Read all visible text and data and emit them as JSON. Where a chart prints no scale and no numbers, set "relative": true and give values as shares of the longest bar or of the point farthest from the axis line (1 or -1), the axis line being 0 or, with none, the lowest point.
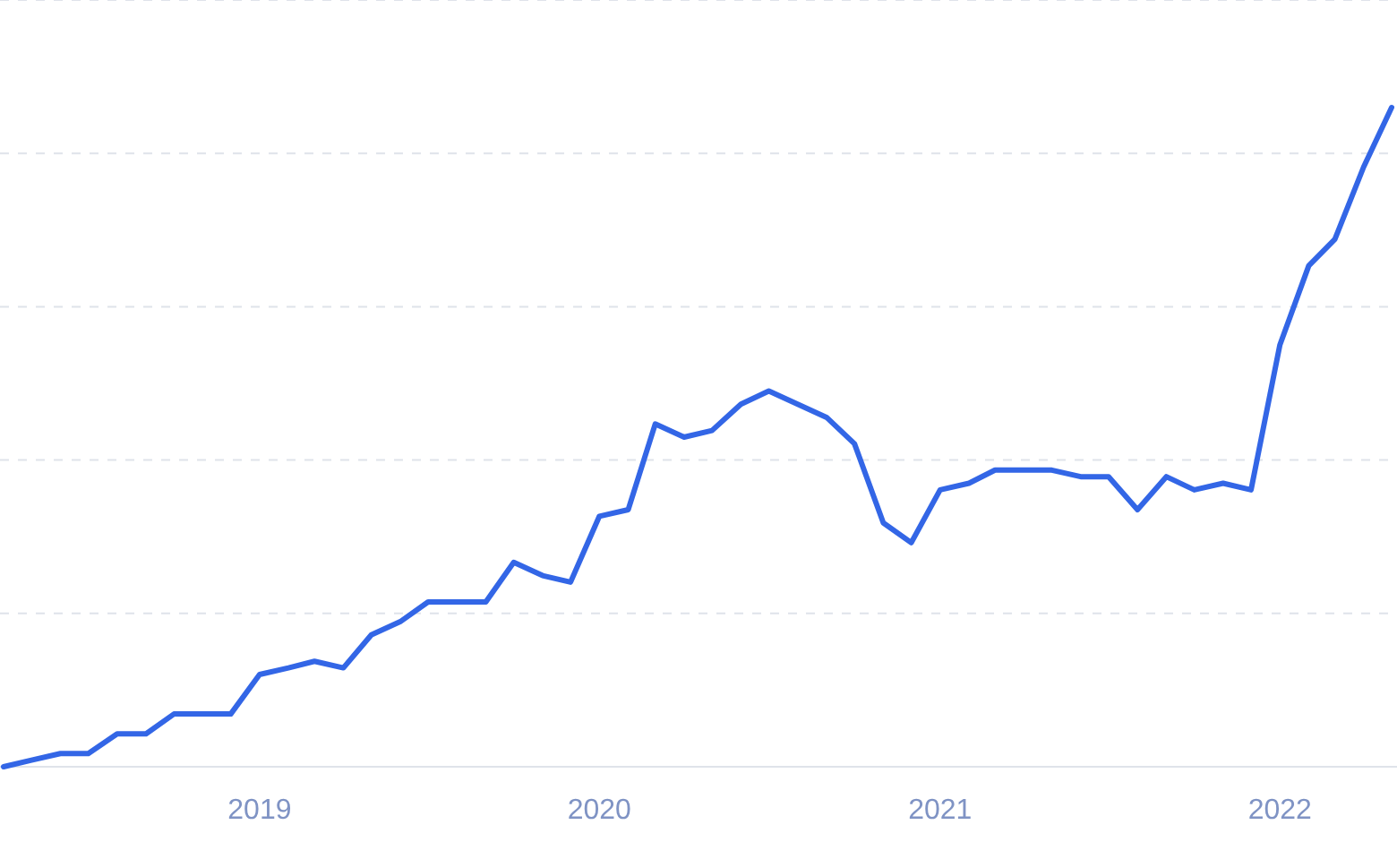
{
  "chart_data": {
    "type": "line",
    "relative": true,
    "grid": "y",
    "xlim": [
      "2018-04",
      "2022-05"
    ],
    "xticks": [
      "2019",
      "2020",
      "2021",
      "2022"
    ],
    "x": [
      "2018-04",
      "2018-05",
      "2018-06",
      "2018-07",
      "2018-08",
      "2018-09",
      "2018-10",
      "2018-11",
      "2018-12",
      "2019-01",
      "2019-02",
      "2019-03",
      "2019-04",
      "2019-05",
      "2019-06",
      "2019-07",
      "2019-08",
      "2019-09",
      "2019-10",
      "2019-11",
      "2019-12",
      "2020-01",
      "2020-02",
      "2020-03",
      "2020-04",
      "2020-05",
      "2020-06",
      "2020-07",
      "2020-08",
      "2020-09",
      "2020-10",
      "2020-11",
      "2020-12",
      "2021-01",
      "2021-02",
      "2021-03",
      "2021-04",
      "2021-05",
      "2021-06",
      "2021-07",
      "2021-08",
      "2021-09",
      "2021-10",
      "2021-11",
      "2021-12",
      "2022-01",
      "2022-02",
      "2022-03",
      "2022-04",
      "2022-05"
    ],
    "series": [
      {
        "color": "#3366e6",
        "values": [
          0.0,
          0.01,
          0.02,
          0.02,
          0.05,
          0.05,
          0.08,
          0.08,
          0.08,
          0.14,
          0.15,
          0.16,
          0.15,
          0.2,
          0.22,
          0.25,
          0.25,
          0.25,
          0.31,
          0.29,
          0.28,
          0.38,
          0.39,
          0.52,
          0.5,
          0.51,
          0.55,
          0.57,
          0.55,
          0.53,
          0.49,
          0.37,
          0.34,
          0.42,
          0.43,
          0.45,
          0.45,
          0.45,
          0.44,
          0.44,
          0.39,
          0.44,
          0.42,
          0.43,
          0.42,
          0.64,
          0.76,
          0.8,
          0.91,
          1.0
        ]
      }
    ],
    "marker": "none",
    "line_style": "solid"
  }
}
